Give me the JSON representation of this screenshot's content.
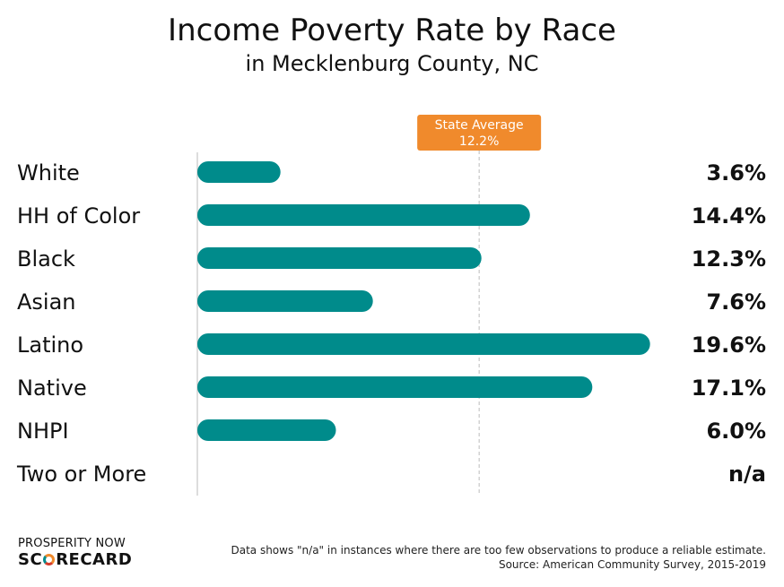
{
  "header": {
    "title": "Income Poverty Rate by Race",
    "subtitle": "in Mecklenburg County, NC"
  },
  "chart_data": {
    "type": "bar",
    "orientation": "horizontal",
    "title": "Income Poverty Rate by Race",
    "subtitle": "in Mecklenburg County, NC",
    "categories": [
      "White",
      "HH of Color",
      "Black",
      "Asian",
      "Latino",
      "Native",
      "NHPI",
      "Two or More"
    ],
    "values": [
      3.6,
      14.4,
      12.3,
      7.6,
      19.6,
      17.1,
      6.0,
      null
    ],
    "value_labels": [
      "3.6%",
      "14.4%",
      "12.3%",
      "7.6%",
      "19.6%",
      "17.1%",
      "6.0%",
      "n/a"
    ],
    "xlim": [
      0,
      20
    ],
    "reference_line": {
      "label": "State Average",
      "value": 12.2,
      "value_label": "12.2%"
    },
    "grid": false,
    "bar_color": "#008b8b",
    "reference_color": "#f08a2c"
  },
  "footer": {
    "logo_top": "PROSPERITY NOW",
    "logo_bottom_1": "SC",
    "logo_bottom_2": "RECARD",
    "note": "Data shows \"n/a\" in instances where there are too few observations to produce a reliable estimate.",
    "source": "Source: American Community Survey, 2015-2019"
  }
}
